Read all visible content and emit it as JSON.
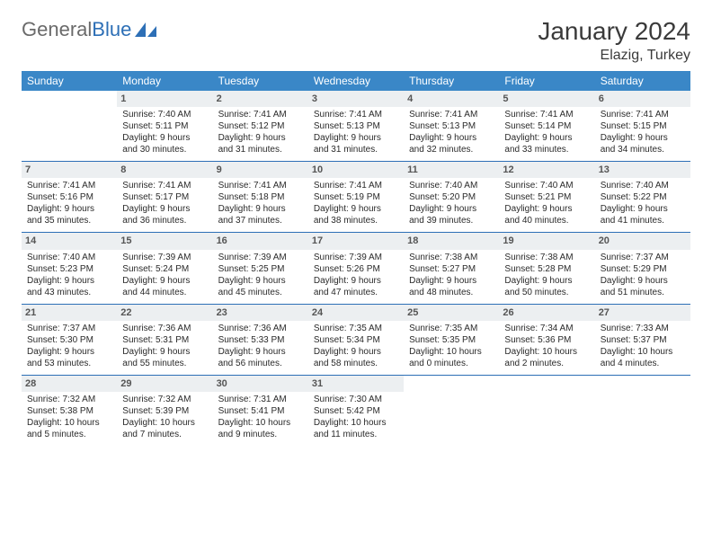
{
  "brand": {
    "part1": "General",
    "part2": "Blue"
  },
  "title": "January 2024",
  "location": "Elazig, Turkey",
  "colors": {
    "header_bg": "#3a87c7",
    "header_fg": "#ffffff",
    "daynum_bg": "#eceff1",
    "daynum_fg": "#555555",
    "rule": "#2d6fb6",
    "text": "#2a2a2a",
    "logo_gray": "#6a6a6a",
    "logo_blue": "#2d6fb6"
  },
  "dow": [
    "Sunday",
    "Monday",
    "Tuesday",
    "Wednesday",
    "Thursday",
    "Friday",
    "Saturday"
  ],
  "weeks": [
    [
      null,
      {
        "n": "1",
        "sr": "Sunrise: 7:40 AM",
        "ss": "Sunset: 5:11 PM",
        "d1": "Daylight: 9 hours",
        "d2": "and 30 minutes."
      },
      {
        "n": "2",
        "sr": "Sunrise: 7:41 AM",
        "ss": "Sunset: 5:12 PM",
        "d1": "Daylight: 9 hours",
        "d2": "and 31 minutes."
      },
      {
        "n": "3",
        "sr": "Sunrise: 7:41 AM",
        "ss": "Sunset: 5:13 PM",
        "d1": "Daylight: 9 hours",
        "d2": "and 31 minutes."
      },
      {
        "n": "4",
        "sr": "Sunrise: 7:41 AM",
        "ss": "Sunset: 5:13 PM",
        "d1": "Daylight: 9 hours",
        "d2": "and 32 minutes."
      },
      {
        "n": "5",
        "sr": "Sunrise: 7:41 AM",
        "ss": "Sunset: 5:14 PM",
        "d1": "Daylight: 9 hours",
        "d2": "and 33 minutes."
      },
      {
        "n": "6",
        "sr": "Sunrise: 7:41 AM",
        "ss": "Sunset: 5:15 PM",
        "d1": "Daylight: 9 hours",
        "d2": "and 34 minutes."
      }
    ],
    [
      {
        "n": "7",
        "sr": "Sunrise: 7:41 AM",
        "ss": "Sunset: 5:16 PM",
        "d1": "Daylight: 9 hours",
        "d2": "and 35 minutes."
      },
      {
        "n": "8",
        "sr": "Sunrise: 7:41 AM",
        "ss": "Sunset: 5:17 PM",
        "d1": "Daylight: 9 hours",
        "d2": "and 36 minutes."
      },
      {
        "n": "9",
        "sr": "Sunrise: 7:41 AM",
        "ss": "Sunset: 5:18 PM",
        "d1": "Daylight: 9 hours",
        "d2": "and 37 minutes."
      },
      {
        "n": "10",
        "sr": "Sunrise: 7:41 AM",
        "ss": "Sunset: 5:19 PM",
        "d1": "Daylight: 9 hours",
        "d2": "and 38 minutes."
      },
      {
        "n": "11",
        "sr": "Sunrise: 7:40 AM",
        "ss": "Sunset: 5:20 PM",
        "d1": "Daylight: 9 hours",
        "d2": "and 39 minutes."
      },
      {
        "n": "12",
        "sr": "Sunrise: 7:40 AM",
        "ss": "Sunset: 5:21 PM",
        "d1": "Daylight: 9 hours",
        "d2": "and 40 minutes."
      },
      {
        "n": "13",
        "sr": "Sunrise: 7:40 AM",
        "ss": "Sunset: 5:22 PM",
        "d1": "Daylight: 9 hours",
        "d2": "and 41 minutes."
      }
    ],
    [
      {
        "n": "14",
        "sr": "Sunrise: 7:40 AM",
        "ss": "Sunset: 5:23 PM",
        "d1": "Daylight: 9 hours",
        "d2": "and 43 minutes."
      },
      {
        "n": "15",
        "sr": "Sunrise: 7:39 AM",
        "ss": "Sunset: 5:24 PM",
        "d1": "Daylight: 9 hours",
        "d2": "and 44 minutes."
      },
      {
        "n": "16",
        "sr": "Sunrise: 7:39 AM",
        "ss": "Sunset: 5:25 PM",
        "d1": "Daylight: 9 hours",
        "d2": "and 45 minutes."
      },
      {
        "n": "17",
        "sr": "Sunrise: 7:39 AM",
        "ss": "Sunset: 5:26 PM",
        "d1": "Daylight: 9 hours",
        "d2": "and 47 minutes."
      },
      {
        "n": "18",
        "sr": "Sunrise: 7:38 AM",
        "ss": "Sunset: 5:27 PM",
        "d1": "Daylight: 9 hours",
        "d2": "and 48 minutes."
      },
      {
        "n": "19",
        "sr": "Sunrise: 7:38 AM",
        "ss": "Sunset: 5:28 PM",
        "d1": "Daylight: 9 hours",
        "d2": "and 50 minutes."
      },
      {
        "n": "20",
        "sr": "Sunrise: 7:37 AM",
        "ss": "Sunset: 5:29 PM",
        "d1": "Daylight: 9 hours",
        "d2": "and 51 minutes."
      }
    ],
    [
      {
        "n": "21",
        "sr": "Sunrise: 7:37 AM",
        "ss": "Sunset: 5:30 PM",
        "d1": "Daylight: 9 hours",
        "d2": "and 53 minutes."
      },
      {
        "n": "22",
        "sr": "Sunrise: 7:36 AM",
        "ss": "Sunset: 5:31 PM",
        "d1": "Daylight: 9 hours",
        "d2": "and 55 minutes."
      },
      {
        "n": "23",
        "sr": "Sunrise: 7:36 AM",
        "ss": "Sunset: 5:33 PM",
        "d1": "Daylight: 9 hours",
        "d2": "and 56 minutes."
      },
      {
        "n": "24",
        "sr": "Sunrise: 7:35 AM",
        "ss": "Sunset: 5:34 PM",
        "d1": "Daylight: 9 hours",
        "d2": "and 58 minutes."
      },
      {
        "n": "25",
        "sr": "Sunrise: 7:35 AM",
        "ss": "Sunset: 5:35 PM",
        "d1": "Daylight: 10 hours",
        "d2": "and 0 minutes."
      },
      {
        "n": "26",
        "sr": "Sunrise: 7:34 AM",
        "ss": "Sunset: 5:36 PM",
        "d1": "Daylight: 10 hours",
        "d2": "and 2 minutes."
      },
      {
        "n": "27",
        "sr": "Sunrise: 7:33 AM",
        "ss": "Sunset: 5:37 PM",
        "d1": "Daylight: 10 hours",
        "d2": "and 4 minutes."
      }
    ],
    [
      {
        "n": "28",
        "sr": "Sunrise: 7:32 AM",
        "ss": "Sunset: 5:38 PM",
        "d1": "Daylight: 10 hours",
        "d2": "and 5 minutes."
      },
      {
        "n": "29",
        "sr": "Sunrise: 7:32 AM",
        "ss": "Sunset: 5:39 PM",
        "d1": "Daylight: 10 hours",
        "d2": "and 7 minutes."
      },
      {
        "n": "30",
        "sr": "Sunrise: 7:31 AM",
        "ss": "Sunset: 5:41 PM",
        "d1": "Daylight: 10 hours",
        "d2": "and 9 minutes."
      },
      {
        "n": "31",
        "sr": "Sunrise: 7:30 AM",
        "ss": "Sunset: 5:42 PM",
        "d1": "Daylight: 10 hours",
        "d2": "and 11 minutes."
      },
      null,
      null,
      null
    ]
  ]
}
